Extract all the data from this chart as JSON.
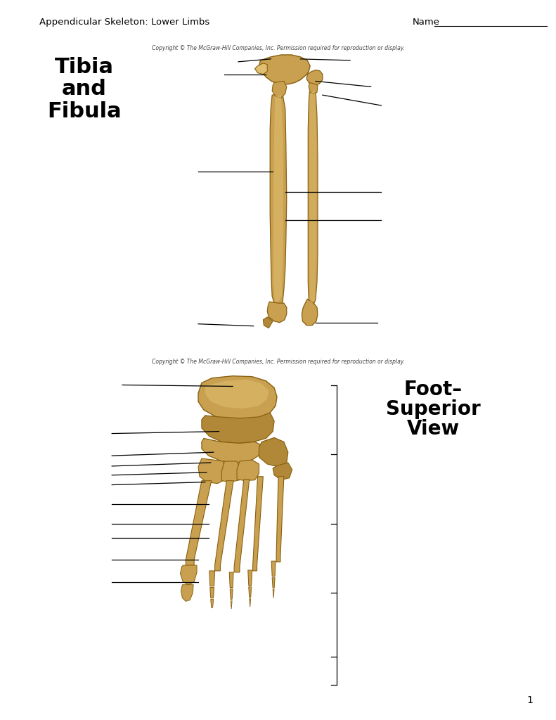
{
  "title": "Appendicular Skeleton: Lower Limbs",
  "name_label": "Name",
  "page_number": "1",
  "copyright": "Copyright © The McGraw-Hill Companies, Inc. Permission required for reproduction or display.",
  "tibia_fibula_label": "Tibia\nand\nFibula",
  "foot_label": "Foot–\nSuperior\nView",
  "bg_color": "#ffffff",
  "bone_color": "#C8A050",
  "bone_mid": "#B08838",
  "bone_dark": "#886010",
  "bone_light": "#E0C070",
  "bone_shadow": "#987830",
  "line_color": "#000000"
}
